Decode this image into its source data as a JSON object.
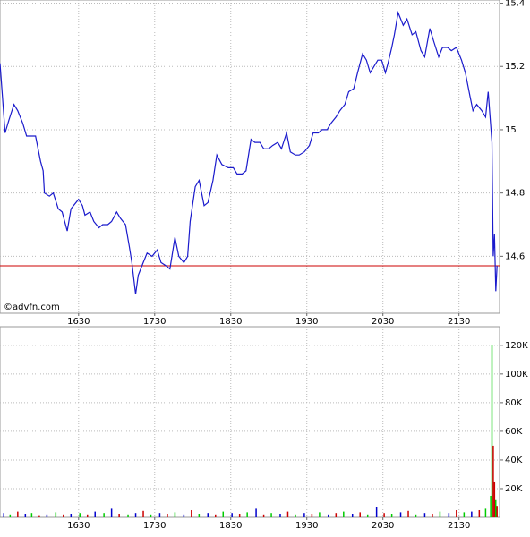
{
  "chart_data": [
    {
      "type": "line",
      "x": [
        928,
        932,
        935,
        939,
        942,
        946,
        949,
        956,
        960,
        962,
        963,
        967,
        970,
        974,
        977,
        981,
        984,
        990,
        993,
        995,
        999,
        1002,
        1006,
        1009,
        1013,
        1016,
        1020,
        1023,
        1027,
        1030,
        1032,
        1035,
        1037,
        1041,
        1044,
        1048,
        1052,
        1055,
        1059,
        1062,
        1066,
        1069,
        1073,
        1076,
        1078,
        1082,
        1085,
        1089,
        1092,
        1096,
        1099,
        1103,
        1108,
        1112,
        1115,
        1119,
        1122,
        1126,
        1129,
        1133,
        1136,
        1140,
        1143,
        1147,
        1150,
        1154,
        1157,
        1161,
        1164,
        1168,
        1172,
        1175,
        1179,
        1182,
        1186,
        1189,
        1193,
        1196,
        1200,
        1203,
        1207,
        1210,
        1214,
        1217,
        1220,
        1223,
        1226,
        1229,
        1232,
        1234,
        1237,
        1239,
        1242,
        1246,
        1249,
        1253,
        1256,
        1260,
        1263,
        1267,
        1270,
        1274,
        1277,
        1281,
        1284,
        1288,
        1292,
        1295,
        1299,
        1301,
        1304,
        1308,
        1311,
        1313,
        1316,
        1317,
        1318,
        1319,
        1320
      ],
      "series": [
        {
          "color": "#1a1acc",
          "values": [
            15.21,
            14.99,
            15.03,
            15.08,
            15.06,
            15.02,
            14.98,
            14.98,
            14.9,
            14.87,
            14.8,
            14.79,
            14.8,
            14.75,
            14.74,
            14.68,
            14.75,
            14.78,
            14.76,
            14.73,
            14.74,
            14.71,
            14.69,
            14.7,
            14.7,
            14.71,
            14.74,
            14.72,
            14.7,
            14.63,
            14.58,
            14.48,
            14.54,
            14.58,
            14.61,
            14.6,
            14.62,
            14.58,
            14.57,
            14.56,
            14.66,
            14.6,
            14.58,
            14.6,
            14.71,
            14.82,
            14.84,
            14.76,
            14.77,
            14.84,
            14.92,
            14.89,
            14.88,
            14.88,
            14.86,
            14.86,
            14.87,
            14.97,
            14.96,
            14.96,
            14.94,
            14.94,
            14.95,
            14.96,
            14.94,
            14.99,
            14.93,
            14.92,
            14.92,
            14.93,
            14.95,
            14.99,
            14.99,
            15.0,
            15.0,
            15.02,
            15.04,
            15.06,
            15.08,
            15.12,
            15.13,
            15.18,
            15.24,
            15.22,
            15.18,
            15.2,
            15.22,
            15.22,
            15.18,
            15.21,
            15.26,
            15.3,
            15.37,
            15.33,
            15.35,
            15.3,
            15.31,
            15.25,
            15.23,
            15.32,
            15.28,
            15.23,
            15.26,
            15.26,
            15.25,
            15.26,
            15.22,
            15.18,
            15.1,
            15.06,
            15.08,
            15.06,
            15.04,
            15.12,
            14.96,
            14.6,
            14.67,
            14.49,
            14.57
          ]
        }
      ],
      "xlim": [
        928,
        1322
      ],
      "ylim": [
        14.42,
        15.41
      ],
      "xticks": [
        {
          "value": 990,
          "label": "1630"
        },
        {
          "value": 1050,
          "label": "1730"
        },
        {
          "value": 1110,
          "label": "1830"
        },
        {
          "value": 1170,
          "label": "1930"
        },
        {
          "value": 1230,
          "label": "2030"
        },
        {
          "value": 1290,
          "label": "2130"
        }
      ],
      "yticks": [
        14.6,
        14.8,
        15,
        15.2,
        15.4
      ],
      "grid": true,
      "reference_line": {
        "value": 14.57,
        "color": "#cc0000"
      },
      "watermark": "©advfn.com"
    },
    {
      "type": "bar",
      "x": [
        931,
        936,
        942,
        948,
        953,
        959,
        965,
        972,
        978,
        984,
        991,
        997,
        1003,
        1010,
        1016,
        1022,
        1029,
        1035,
        1041,
        1047,
        1054,
        1060,
        1066,
        1073,
        1079,
        1085,
        1092,
        1098,
        1104,
        1111,
        1117,
        1123,
        1130,
        1136,
        1142,
        1149,
        1155,
        1161,
        1168,
        1174,
        1180,
        1187,
        1193,
        1199,
        1206,
        1212,
        1218,
        1225,
        1231,
        1237,
        1244,
        1250,
        1256,
        1263,
        1269,
        1275,
        1282,
        1288,
        1294,
        1300,
        1306,
        1311,
        1315,
        1316,
        1317,
        1318,
        1319,
        1320
      ],
      "values": [
        3000,
        2000,
        4000,
        2500,
        3000,
        1500,
        2000,
        3500,
        2000,
        2500,
        3000,
        2000,
        4000,
        3000,
        6000,
        2500,
        2000,
        3000,
        4500,
        2000,
        3000,
        2500,
        3500,
        2000,
        5000,
        2500,
        3000,
        2000,
        4000,
        3000,
        2500,
        3500,
        6000,
        2000,
        3000,
        2500,
        4000,
        2000,
        3000,
        2500,
        3500,
        2000,
        3000,
        4000,
        2500,
        3500,
        2000,
        7000,
        3000,
        2500,
        3500,
        4500,
        2000,
        3000,
        2500,
        4000,
        3000,
        5000,
        3500,
        4000,
        5000,
        6000,
        15000,
        120000,
        50000,
        25000,
        12000,
        8000
      ],
      "colors": [
        "#0000cc",
        "#00cc00",
        "#cc0000",
        "#0000cc",
        "#00cc00",
        "#cc0000",
        "#0000cc",
        "#00cc00",
        "#cc0000",
        "#0000cc",
        "#00cc00",
        "#cc0000",
        "#0000cc",
        "#00cc00",
        "#0000cc",
        "#cc0000",
        "#00cc00",
        "#0000cc",
        "#cc0000",
        "#00cc00",
        "#0000cc",
        "#cc0000",
        "#00cc00",
        "#0000cc",
        "#cc0000",
        "#00cc00",
        "#0000cc",
        "#cc0000",
        "#00cc00",
        "#0000cc",
        "#cc0000",
        "#00cc00",
        "#0000cc",
        "#cc0000",
        "#00cc00",
        "#0000cc",
        "#cc0000",
        "#00cc00",
        "#0000cc",
        "#cc0000",
        "#00cc00",
        "#0000cc",
        "#cc0000",
        "#00cc00",
        "#0000cc",
        "#cc0000",
        "#00cc00",
        "#0000cc",
        "#cc0000",
        "#00cc00",
        "#0000cc",
        "#cc0000",
        "#00cc00",
        "#0000cc",
        "#cc0000",
        "#00cc00",
        "#0000cc",
        "#cc0000",
        "#00cc00",
        "#0000cc",
        "#cc0000",
        "#00cc00",
        "#00cc00",
        "#00cc00",
        "#cc0000",
        "#cc0000",
        "#00cc00",
        "#cc0000"
      ],
      "xlim": [
        928,
        1322
      ],
      "ylim": [
        0,
        133000
      ],
      "xticks": [
        {
          "value": 990,
          "label": "1630"
        },
        {
          "value": 1050,
          "label": "1730"
        },
        {
          "value": 1110,
          "label": "1830"
        },
        {
          "value": 1170,
          "label": "1930"
        },
        {
          "value": 1230,
          "label": "2030"
        },
        {
          "value": 1290,
          "label": "2130"
        }
      ],
      "yticks": [
        {
          "value": 20000,
          "label": "20K"
        },
        {
          "value": 40000,
          "label": "40K"
        },
        {
          "value": 60000,
          "label": "60K"
        },
        {
          "value": 80000,
          "label": "80K"
        },
        {
          "value": 100000,
          "label": "100K"
        },
        {
          "value": 120000,
          "label": "120K"
        }
      ],
      "grid": true
    }
  ]
}
